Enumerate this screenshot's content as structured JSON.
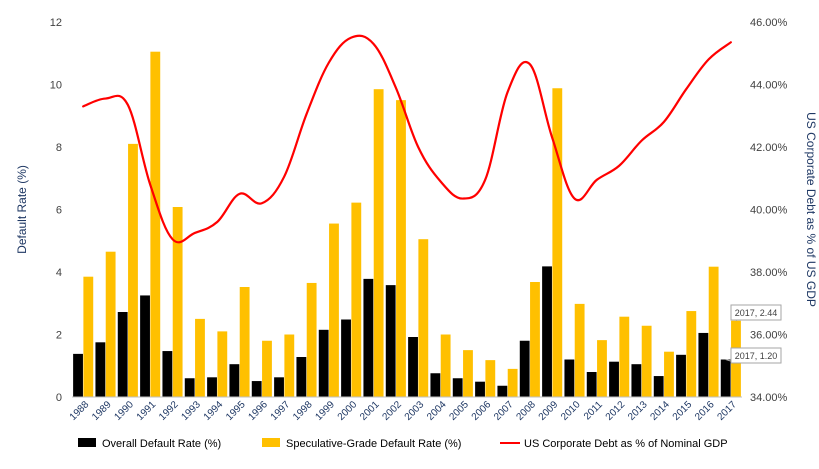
{
  "chart_data": {
    "type": "bar",
    "categories": [
      "1988",
      "1989",
      "1990",
      "1991",
      "1992",
      "1993",
      "1994",
      "1995",
      "1996",
      "1997",
      "1998",
      "1999",
      "2000",
      "2001",
      "2002",
      "2003",
      "2004",
      "2005",
      "2006",
      "2007",
      "2008",
      "2009",
      "2010",
      "2011",
      "2012",
      "2013",
      "2014",
      "2015",
      "2016",
      "2017"
    ],
    "series": [
      {
        "name": "Overall Default Rate (%)",
        "type": "bar",
        "axis": "left",
        "color": "#000000",
        "values": [
          1.38,
          1.75,
          2.72,
          3.25,
          1.47,
          0.6,
          0.63,
          1.05,
          0.51,
          0.63,
          1.28,
          2.15,
          2.48,
          3.78,
          3.58,
          1.92,
          0.76,
          0.6,
          0.49,
          0.36,
          1.8,
          4.18,
          1.2,
          0.8,
          1.13,
          1.05,
          0.67,
          1.35,
          2.05,
          1.2
        ]
      },
      {
        "name": "Speculative-Grade Default Rate (%)",
        "type": "bar",
        "axis": "left",
        "color": "#ffc000",
        "values": [
          3.85,
          4.65,
          8.1,
          11.05,
          6.08,
          2.5,
          2.1,
          3.52,
          1.8,
          2.0,
          3.65,
          5.55,
          6.22,
          9.85,
          9.5,
          5.05,
          2.0,
          1.5,
          1.18,
          0.9,
          3.68,
          9.88,
          2.98,
          1.82,
          2.57,
          2.28,
          1.45,
          2.75,
          4.17,
          2.44
        ]
      },
      {
        "name": "US Corporate Debt as % of Nominal GDP",
        "type": "line",
        "axis": "right",
        "color": "#ff0000",
        "values": [
          43.3,
          43.55,
          43.35,
          40.8,
          39.05,
          39.25,
          39.6,
          40.5,
          40.2,
          41.05,
          43.05,
          44.7,
          45.5,
          45.3,
          43.9,
          42.0,
          40.9,
          40.35,
          40.95,
          43.75,
          44.65,
          42.3,
          40.35,
          40.95,
          41.4,
          42.2,
          42.8,
          43.85,
          44.8,
          45.35
        ]
      }
    ],
    "left_axis": {
      "title": "Default Rate (%)",
      "min": 0,
      "max": 12,
      "ticks": [
        "0",
        "2",
        "4",
        "6",
        "8",
        "10",
        "12"
      ]
    },
    "right_axis": {
      "title": "US Corporate Debt as % of US GDP",
      "min": 34,
      "max": 46,
      "ticks": [
        "34.00%",
        "36.00%",
        "38.00%",
        "40.00%",
        "42.00%",
        "44.00%",
        "46.00%"
      ]
    },
    "annotations": [
      {
        "text": "2017, 2.44",
        "series": 1,
        "index": 29
      },
      {
        "text": "2017, 1.20",
        "series": 0,
        "index": 29
      }
    ],
    "legend": {
      "placement": "bottom"
    },
    "grid": false
  }
}
